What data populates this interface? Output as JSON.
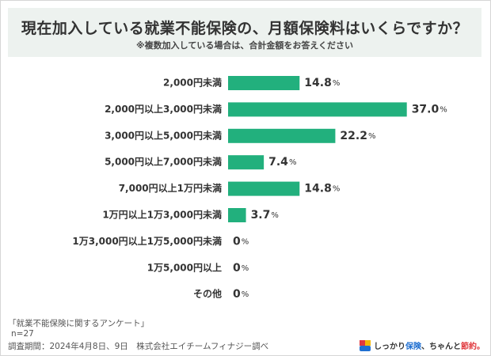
{
  "header": {
    "title": "現在加入している就業不能保険の、月額保険料はいくらですか？",
    "subtitle": "※複数加入している場合は、合計金額をお答えください"
  },
  "chart_data": {
    "type": "bar",
    "orientation": "horizontal",
    "categories": [
      "2,000円未満",
      "2,000円以上3,000円未満",
      "3,000円以上5,000円未満",
      "5,000円以上7,000円未満",
      "7,000円以上1万円未満",
      "1万円以上1万3,000円未満",
      "1万3,000円以上1万5,000円未満",
      "1万5,000円以上",
      "その他"
    ],
    "values": [
      14.8,
      37.0,
      22.2,
      7.4,
      14.8,
      3.7,
      0,
      0,
      0
    ],
    "value_labels": [
      "14.8",
      "37.0",
      "22.2",
      "7.4",
      "14.8",
      "3.7",
      "0",
      "0",
      "0"
    ],
    "unit": "%",
    "xlim": [
      0,
      40
    ],
    "grid": false,
    "legend": "none",
    "bar_color": "#22b07d"
  },
  "footer": {
    "survey_name": "「就業不能保険に関するアンケート」",
    "sample": "n=27",
    "period": "調査期間：2024年4月8日、9日　株式会社エイチームフィナジー調べ"
  },
  "brand": {
    "icon": "brand-logo-icon",
    "part1": "しっかり",
    "part2": "保険",
    "part3": "、ちゃんと",
    "part4": "節約。"
  }
}
